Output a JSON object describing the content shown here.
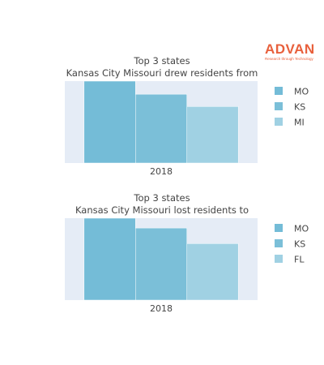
{
  "logo": {
    "name": "ADVAN",
    "tagline": "Research through Technology"
  },
  "colors": {
    "plot_bg": "#e5ecf6",
    "paper_bg": "#ffffff",
    "text": "#444444"
  },
  "chart_data": [
    {
      "type": "bar",
      "title_lines": [
        "Top 3 states",
        "Kansas City Missouri drew residents from"
      ],
      "x_categories": [
        "2018"
      ],
      "legend_position": "right",
      "series": [
        {
          "name": "MO",
          "values": [
            1.0
          ],
          "color": "#74bcd7"
        },
        {
          "name": "KS",
          "values": [
            0.84
          ],
          "color": "#7bbfd8"
        },
        {
          "name": "MI",
          "values": [
            0.69
          ],
          "color": "#a0d1e3"
        }
      ],
      "y_axis_visible": false
    },
    {
      "type": "bar",
      "title_lines": [
        "Top 3 states",
        "Kansas City Missouri lost residents to"
      ],
      "x_categories": [
        "2018"
      ],
      "legend_position": "right",
      "series": [
        {
          "name": "MO",
          "values": [
            1.0
          ],
          "color": "#74bcd7"
        },
        {
          "name": "KS",
          "values": [
            0.88
          ],
          "color": "#7bbfd8"
        },
        {
          "name": "FL",
          "values": [
            0.69
          ],
          "color": "#a0d1e3"
        }
      ],
      "y_axis_visible": false
    }
  ]
}
